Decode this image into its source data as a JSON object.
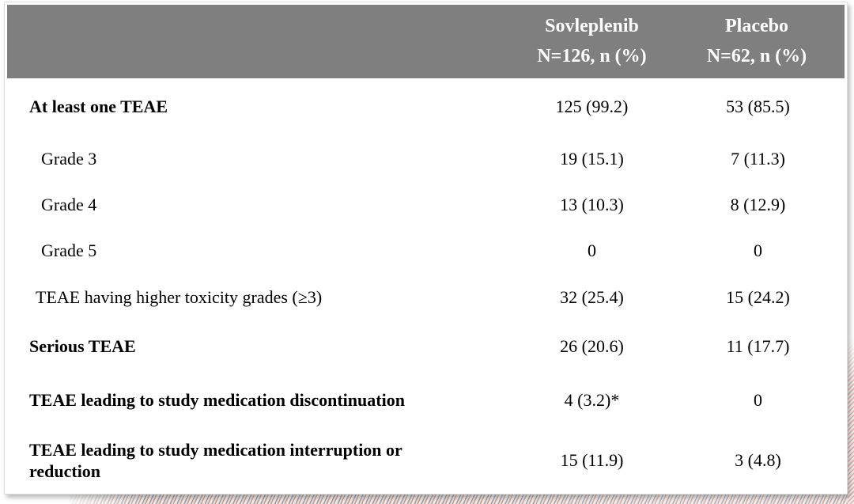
{
  "slide": {
    "colors": {
      "header_bg": "#7f7f7f",
      "header_text": "#ffffff",
      "body_text": "#000000"
    },
    "table": {
      "header": {
        "columns": [
          {
            "line1": "Sovleplenib",
            "line2": "N=126, n (%)"
          },
          {
            "line1": "Placebo",
            "line2": "N=62, n (%)"
          }
        ]
      },
      "rows": [
        {
          "label": "At least one TEAE",
          "sovleplenib": "125 (99.2)",
          "placebo": "53 (85.5)"
        },
        {
          "label": "Grade 3",
          "sovleplenib": "19 (15.1)",
          "placebo": "7 (11.3)"
        },
        {
          "label": "Grade 4",
          "sovleplenib": "13 (10.3)",
          "placebo": "8 (12.9)"
        },
        {
          "label": "Grade 5",
          "sovleplenib": "0",
          "placebo": "0"
        },
        {
          "label": "TEAE having higher toxicity grades (≥3)",
          "sovleplenib": "32 (25.4)",
          "placebo": "15 (24.2)"
        },
        {
          "label": "Serious TEAE",
          "sovleplenib": "26 (20.6)",
          "placebo": "11 (17.7)"
        },
        {
          "label": "TEAE leading to study medication discontinuation",
          "sovleplenib": "4 (3.2)*",
          "placebo": "0"
        },
        {
          "label": "TEAE leading to study medication interruption or reduction",
          "sovleplenib": "15 (11.9)",
          "placebo": "3 (4.8)"
        }
      ]
    }
  }
}
